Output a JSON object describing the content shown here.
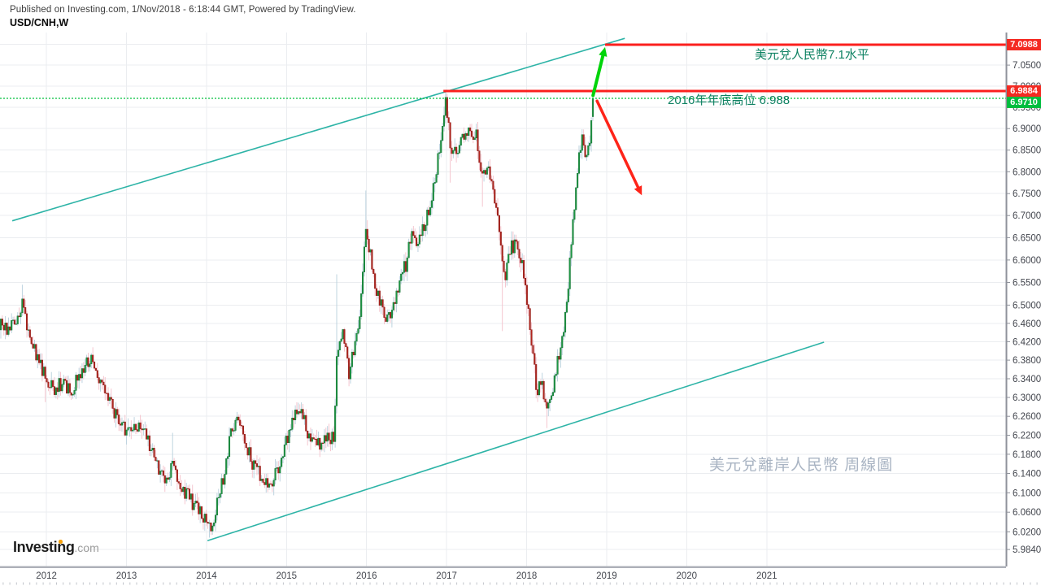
{
  "header": {
    "published_line": "Published on Investing.com, 1/Nov/2018 - 6:18:44 GMT, Powered by TradingView.",
    "symbol_line": "USD/CNH,W"
  },
  "logo": {
    "main": "Investing",
    "suffix": ".com"
  },
  "annotations": {
    "level_71": "美元兌人民幣7.1水平",
    "high_2016": "2016年年底高位 6.988",
    "watermark": "美元兌離岸人民幣 周線圖"
  },
  "price_scale": {
    "r1": {
      "text": "7.0988",
      "bg": "#f42a22"
    },
    "r2": {
      "text": "6.9884",
      "bg": "#f42a22"
    },
    "cur": {
      "text": "6.9710",
      "bg": "#00bd3f"
    }
  },
  "colors": {
    "up_body": "#1f9946",
    "up_border": "#127230",
    "up_wick": "#b7cfdc",
    "down_body": "#b3251e",
    "down_border": "#8c1c17",
    "down_wick": "#f4c0ca",
    "trendline": "#2eb4a7",
    "resistance": "#fb201e",
    "current_dotted": "#00c03c",
    "arrow_up": "#00d40a",
    "arrow_down": "#fe2419",
    "grid": "#ebedf0",
    "axis_line": "#8f929b",
    "axis_bottom_line": "#aeb1b9",
    "axis_text": "#42454d",
    "month_tick": "#c2c5cb"
  },
  "chart_data": {
    "type": "candlestick",
    "symbol": "USD/CNH",
    "timeframe": "W",
    "scale": "log",
    "x_axis": {
      "time_at_left": 2011.42,
      "time_at_right": 2023.99,
      "year_ticks": [
        2012,
        2013,
        2014,
        2015,
        2016,
        2017,
        2018,
        2019,
        2020,
        2021
      ]
    },
    "y_axis": {
      "price_at_top": 7.1281,
      "price_at_bottom": 5.9497,
      "ticks": [
        7.1,
        7.05,
        7.0,
        6.95,
        6.9,
        6.85,
        6.8,
        6.75,
        6.7,
        6.65,
        6.6,
        6.55,
        6.5,
        6.46,
        6.42,
        6.38,
        6.34,
        6.3,
        6.26,
        6.22,
        6.18,
        6.14,
        6.1,
        6.06,
        6.02,
        5.984
      ]
    },
    "last_price": 6.971,
    "key_levels": [
      {
        "price": 7.0988,
        "label": "7.0988",
        "start_time": 2018.98,
        "style": "solid",
        "role": "resistance-7.1"
      },
      {
        "price": 6.9884,
        "label": "6.9884",
        "start_time": 2016.96,
        "style": "solid",
        "role": "2016-high"
      },
      {
        "price": 6.971,
        "label": "6.9710",
        "start_time": 2011.42,
        "style": "dotted",
        "role": "current-price"
      }
    ],
    "trendlines": [
      {
        "name": "upper-channel",
        "t1": 2011.573,
        "p1": 6.688,
        "t2": 2019.226,
        "p2": 7.114
      },
      {
        "name": "lower-channel",
        "t1": 2014.012,
        "p1": 6.002,
        "t2": 2021.716,
        "p2": 6.419
      }
    ],
    "arrows": [
      {
        "name": "projection-up",
        "color_key": "arrow_up",
        "t1": 2018.83,
        "p1": 6.978,
        "t2": 2018.98,
        "p2": 7.093,
        "width": 4
      },
      {
        "name": "projection-down",
        "color_key": "arrow_down",
        "t1": 2018.88,
        "p1": 6.965,
        "t2": 2019.44,
        "p2": 6.746,
        "width": 3.5
      }
    ],
    "series_start": 2011.43,
    "series_end": 2018.835,
    "weeks_per_year": 52.18,
    "noise_seed": 987654321,
    "price_path_anchors": [
      [
        2011.43,
        6.455
      ],
      [
        2011.52,
        6.44
      ],
      [
        2011.62,
        6.465
      ],
      [
        2011.7,
        6.505
      ],
      [
        2011.76,
        6.455
      ],
      [
        2011.83,
        6.415
      ],
      [
        2011.9,
        6.38
      ],
      [
        2011.99,
        6.345
      ],
      [
        2012.1,
        6.315
      ],
      [
        2012.21,
        6.335
      ],
      [
        2012.31,
        6.31
      ],
      [
        2012.44,
        6.36
      ],
      [
        2012.56,
        6.385
      ],
      [
        2012.65,
        6.345
      ],
      [
        2012.77,
        6.3
      ],
      [
        2012.88,
        6.26
      ],
      [
        2012.98,
        6.23
      ],
      [
        2013.08,
        6.225
      ],
      [
        2013.16,
        6.245
      ],
      [
        2013.28,
        6.205
      ],
      [
        2013.42,
        6.14
      ],
      [
        2013.5,
        6.125
      ],
      [
        2013.57,
        6.16
      ],
      [
        2013.68,
        6.115
      ],
      [
        2013.82,
        6.08
      ],
      [
        2013.94,
        6.055
      ],
      [
        2014.03,
        6.025
      ],
      [
        2014.12,
        6.065
      ],
      [
        2014.22,
        6.14
      ],
      [
        2014.31,
        6.235
      ],
      [
        2014.38,
        6.255
      ],
      [
        2014.47,
        6.22
      ],
      [
        2014.57,
        6.16
      ],
      [
        2014.68,
        6.135
      ],
      [
        2014.79,
        6.115
      ],
      [
        2014.9,
        6.15
      ],
      [
        2015.0,
        6.21
      ],
      [
        2015.1,
        6.255
      ],
      [
        2015.18,
        6.28
      ],
      [
        2015.27,
        6.22
      ],
      [
        2015.38,
        6.2
      ],
      [
        2015.5,
        6.21
      ],
      [
        2015.59,
        6.215
      ],
      [
        2015.63,
        6.4
      ],
      [
        2015.7,
        6.445
      ],
      [
        2015.78,
        6.35
      ],
      [
        2015.83,
        6.395
      ],
      [
        2015.91,
        6.46
      ],
      [
        2015.99,
        6.67
      ],
      [
        2016.07,
        6.585
      ],
      [
        2016.14,
        6.52
      ],
      [
        2016.23,
        6.47
      ],
      [
        2016.32,
        6.48
      ],
      [
        2016.41,
        6.555
      ],
      [
        2016.49,
        6.59
      ],
      [
        2016.56,
        6.665
      ],
      [
        2016.63,
        6.645
      ],
      [
        2016.71,
        6.675
      ],
      [
        2016.79,
        6.725
      ],
      [
        2016.86,
        6.79
      ],
      [
        2016.93,
        6.885
      ],
      [
        2016.99,
        6.975
      ],
      [
        2017.05,
        6.855
      ],
      [
        2017.12,
        6.845
      ],
      [
        2017.19,
        6.875
      ],
      [
        2017.28,
        6.89
      ],
      [
        2017.37,
        6.885
      ],
      [
        2017.44,
        6.79
      ],
      [
        2017.52,
        6.8
      ],
      [
        2017.6,
        6.73
      ],
      [
        2017.67,
        6.655
      ],
      [
        2017.72,
        6.555
      ],
      [
        2017.8,
        6.63
      ],
      [
        2017.87,
        6.635
      ],
      [
        2017.94,
        6.6
      ],
      [
        2018.0,
        6.51
      ],
      [
        2018.07,
        6.415
      ],
      [
        2018.13,
        6.31
      ],
      [
        2018.19,
        6.33
      ],
      [
        2018.25,
        6.275
      ],
      [
        2018.31,
        6.29
      ],
      [
        2018.37,
        6.36
      ],
      [
        2018.44,
        6.42
      ],
      [
        2018.5,
        6.5
      ],
      [
        2018.55,
        6.62
      ],
      [
        2018.6,
        6.72
      ],
      [
        2018.65,
        6.835
      ],
      [
        2018.7,
        6.875
      ],
      [
        2018.74,
        6.815
      ],
      [
        2018.78,
        6.855
      ],
      [
        2018.81,
        6.925
      ],
      [
        2018.835,
        6.971
      ]
    ],
    "spike_wicks": [
      {
        "t": 2011.7,
        "high": 6.545
      },
      {
        "t": 2011.99,
        "low": 6.29
      },
      {
        "t": 2013.57,
        "high": 6.225
      },
      {
        "t": 2014.03,
        "low": 6.008
      },
      {
        "t": 2015.63,
        "high": 6.568
      },
      {
        "t": 2015.99,
        "high": 6.757
      },
      {
        "t": 2016.99,
        "high": 6.9884
      },
      {
        "t": 2017.05,
        "low": 6.775
      },
      {
        "t": 2017.44,
        "low": 6.72
      },
      {
        "t": 2017.7,
        "low": 6.443
      },
      {
        "t": 2018.25,
        "low": 6.235
      }
    ],
    "last_candle": {
      "open": 6.928,
      "close": 6.971,
      "high": 6.9884,
      "low": 6.918
    }
  }
}
